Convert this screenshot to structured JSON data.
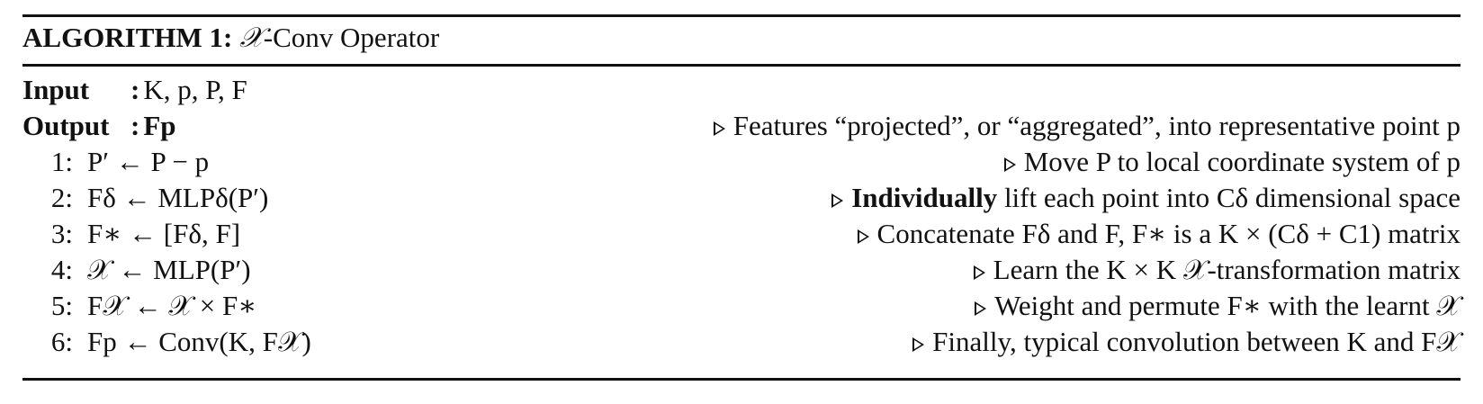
{
  "algorithm": {
    "title_prefix": "ALGORITHM 1:",
    "title_symbol": "𝒳",
    "title_suffix": "-Conv Operator",
    "input": {
      "label": "Input",
      "colon": ":",
      "value": "K, p, P, F"
    },
    "output": {
      "label": "Output",
      "colon": ":",
      "value": "Fp",
      "comment": "Features “projected”, or “aggregated”, into representative point p"
    },
    "steps": [
      {
        "number": "1:",
        "statement": "P′ ← P − p",
        "comment": "Move P to local coordinate system of p"
      },
      {
        "number": "2:",
        "statement": "Fδ ← MLPδ(P′)",
        "comment_emphasis": "Individually",
        "comment": "lift each point into Cδ dimensional space"
      },
      {
        "number": "3:",
        "statement": "F∗ ← [Fδ, F]",
        "comment": "Concatenate Fδ and F, F∗ is a K × (Cδ + C1) matrix"
      },
      {
        "number": "4:",
        "statement": "𝒳 ← MLP(P′)",
        "comment": "Learn the K × K 𝒳-transformation matrix"
      },
      {
        "number": "5:",
        "statement": "F𝒳 ← 𝒳 × F∗",
        "comment": "Weight and permute F∗ with the learnt 𝒳"
      },
      {
        "number": "6:",
        "statement": "Fp ← Conv(K, F𝒳)",
        "comment": "Finally, typical convolution between K and F𝒳"
      }
    ]
  }
}
